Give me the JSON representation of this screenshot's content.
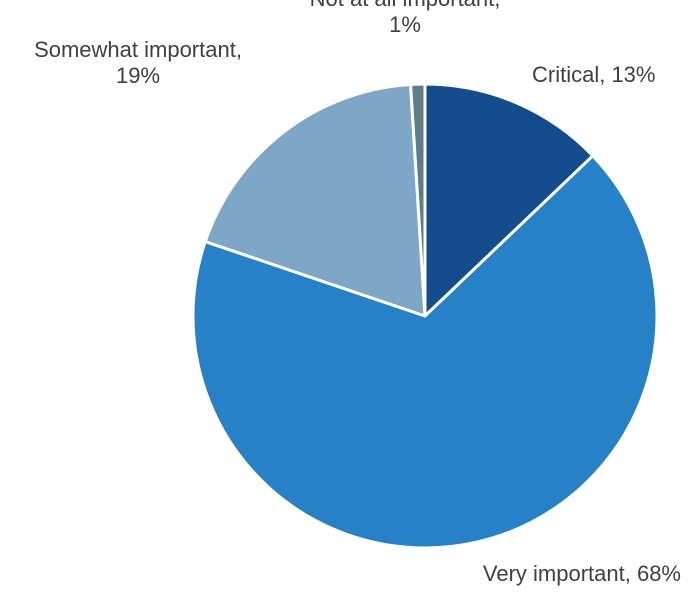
{
  "chart_data": {
    "type": "pie",
    "title": "",
    "categories": [
      "Critical",
      "Very important",
      "Somewhat important",
      "Not at all important"
    ],
    "values": [
      13,
      68,
      19,
      1
    ],
    "unit": "%",
    "start_angle_deg": 0,
    "direction": "clockwise",
    "colors": [
      "#154c8e",
      "#2681c6",
      "#7ea6c6",
      "#5f7c8a"
    ],
    "slice_border_color": "#ffffff",
    "labels": [
      {
        "lines": [
          "Critical, 13%"
        ]
      },
      {
        "lines": [
          "Very important, 68%"
        ]
      },
      {
        "lines": [
          "Somewhat important,",
          "19%"
        ]
      },
      {
        "lines": [
          "Not at all important,",
          "1%"
        ]
      }
    ],
    "legend": "none",
    "grid": false
  }
}
